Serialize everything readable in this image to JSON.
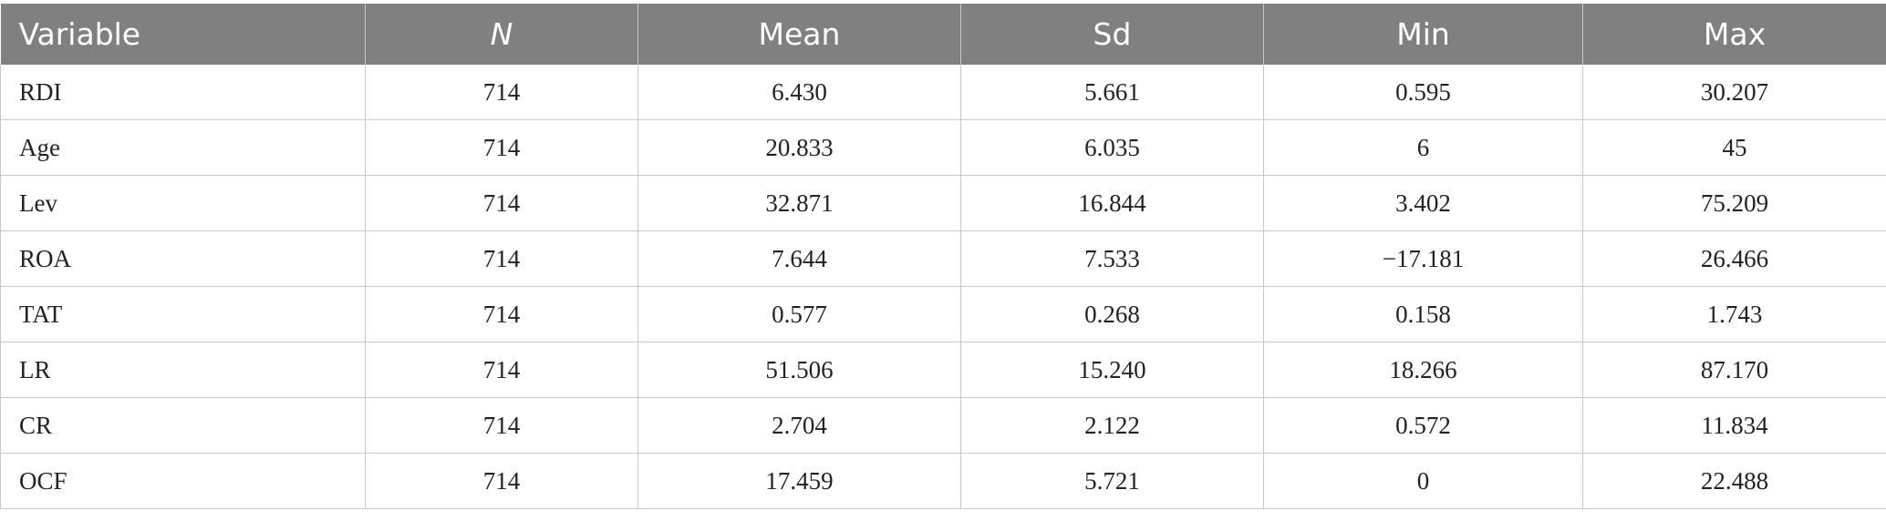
{
  "table": {
    "header": [
      "Variable",
      "N",
      "Mean",
      "Sd",
      "Min",
      "Max"
    ],
    "rows": [
      [
        "RDI",
        "714",
        "6.430",
        "5.661",
        "0.595",
        "30.207"
      ],
      [
        "Age",
        "714",
        "20.833",
        "6.035",
        "6",
        "45"
      ],
      [
        "Lev",
        "714",
        "32.871",
        "16.844",
        "3.402",
        "75.209"
      ],
      [
        "ROA",
        "714",
        "7.644",
        "7.533",
        "−17.181",
        "26.466"
      ],
      [
        "TAT",
        "714",
        "0.577",
        "0.268",
        "0.158",
        "1.743"
      ],
      [
        "LR",
        "714",
        "51.506",
        "15.240",
        "18.266",
        "87.170"
      ],
      [
        "CR",
        "714",
        "2.704",
        "2.122",
        "0.572",
        "11.834"
      ],
      [
        "OCF",
        "714",
        "17.459",
        "5.721",
        "0",
        "22.488"
      ]
    ]
  }
}
